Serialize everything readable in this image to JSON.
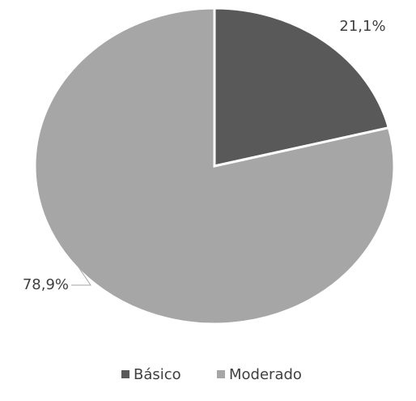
{
  "chart_data": {
    "type": "pie",
    "categories": [
      "Básico",
      "Moderado"
    ],
    "values": [
      21.1,
      78.9
    ],
    "value_labels": [
      "21,1%",
      "78,9%"
    ],
    "colors": [
      "#595959",
      "#a6a6a6"
    ],
    "legend": "bottom"
  }
}
